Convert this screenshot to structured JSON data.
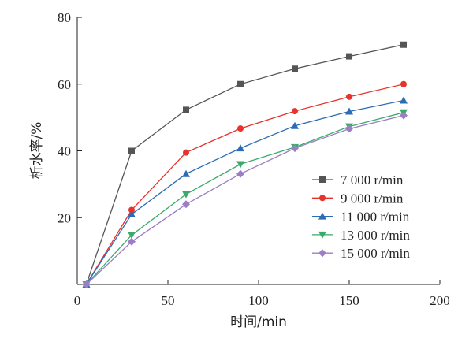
{
  "chart_data": {
    "type": "line",
    "title": "",
    "xlabel": "时间/min",
    "ylabel": "析水率/%",
    "xlim": [
      0,
      200
    ],
    "ylim": [
      0,
      80
    ],
    "xticks": [
      0,
      50,
      100,
      150,
      200
    ],
    "yticks": [
      20,
      40,
      60,
      80
    ],
    "grid": false,
    "legend_position": "bottom-right",
    "x": [
      5,
      30,
      60,
      90,
      120,
      150,
      180
    ],
    "series": [
      {
        "name": "7 000 r/min",
        "color": "#555555",
        "marker": "square",
        "values": [
          0,
          40,
          52.3,
          60,
          64.6,
          68.3,
          71.8
        ]
      },
      {
        "name": "9 000 r/min",
        "color": "#e8322d",
        "marker": "circle",
        "values": [
          0,
          22.3,
          39.5,
          46.7,
          51.9,
          56.2,
          60
        ]
      },
      {
        "name": "11 000 r/min",
        "color": "#2b6db5",
        "marker": "triangle-up",
        "values": [
          0,
          21,
          33.1,
          40.8,
          47.5,
          51.8,
          55.1
        ]
      },
      {
        "name": "13 000 r/min",
        "color": "#3aaa6a",
        "marker": "triangle-down",
        "values": [
          0,
          14.8,
          27,
          36,
          41.1,
          47.3,
          51.5
        ]
      },
      {
        "name": "15 000 r/min",
        "color": "#9b7ec4",
        "marker": "diamond",
        "values": [
          0,
          12.8,
          24,
          33.1,
          40.8,
          46.6,
          50.6
        ]
      }
    ]
  }
}
